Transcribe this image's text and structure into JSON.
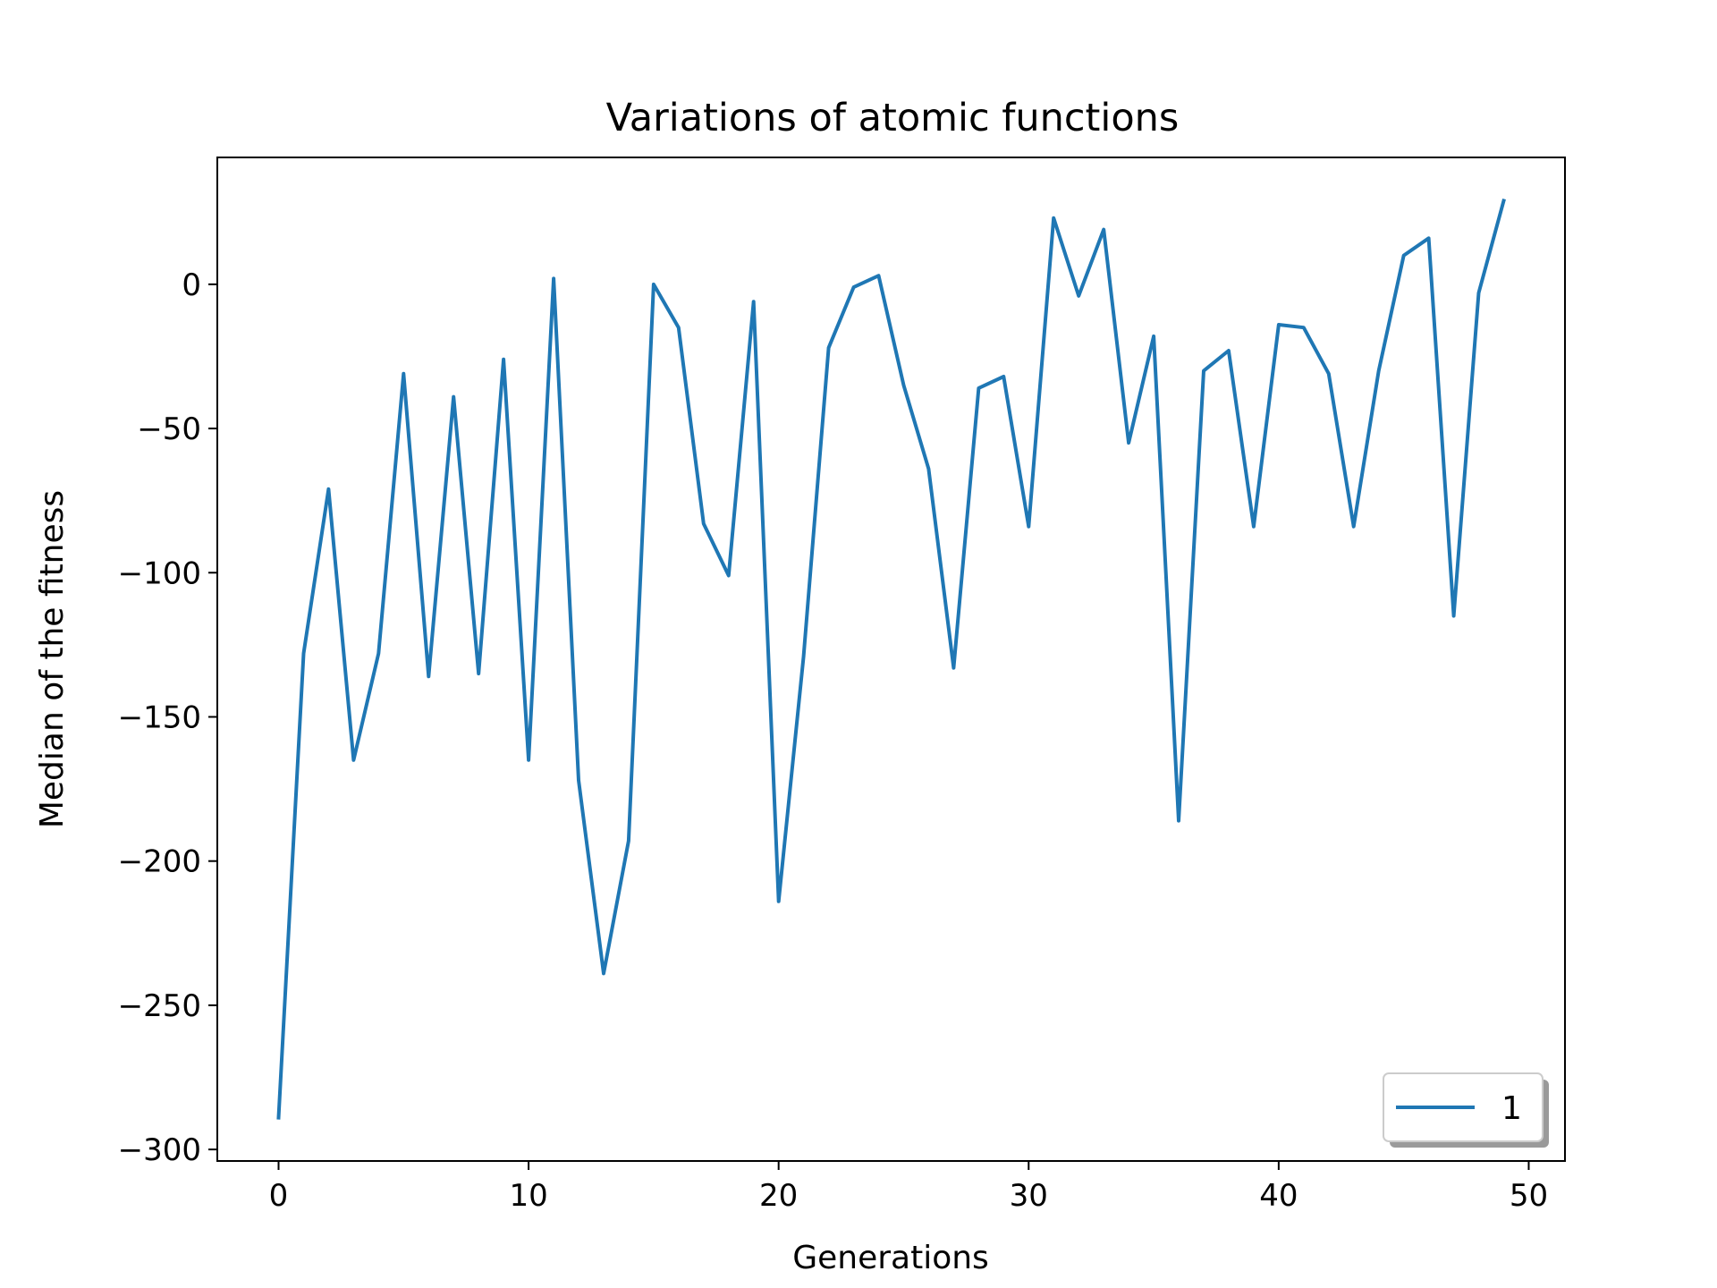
{
  "chart_data": {
    "type": "line",
    "title": "Variations of atomic functions",
    "xlabel": "Generations",
    "ylabel": "Median of the fitness",
    "xlim": [
      -2.45,
      51.45
    ],
    "ylim": [
      -304,
      44
    ],
    "xticks": [
      0,
      10,
      20,
      30,
      40,
      50
    ],
    "xtick_labels": [
      "0",
      "10",
      "20",
      "30",
      "40",
      "50"
    ],
    "yticks": [
      -300,
      -250,
      -200,
      -150,
      -100,
      -50,
      0
    ],
    "ytick_labels": [
      "−300",
      "−250",
      "−200",
      "−150",
      "−100",
      "−50",
      "0"
    ],
    "grid": false,
    "legend_position": "lower-right",
    "series": [
      {
        "name": "1",
        "color": "#1f77b4",
        "x": [
          0,
          1,
          2,
          3,
          4,
          5,
          6,
          7,
          8,
          9,
          10,
          11,
          12,
          13,
          14,
          15,
          16,
          17,
          18,
          19,
          20,
          21,
          22,
          23,
          24,
          25,
          26,
          27,
          28,
          29,
          30,
          31,
          32,
          33,
          34,
          35,
          36,
          37,
          38,
          39,
          40,
          41,
          42,
          43,
          44,
          45,
          46,
          47,
          48,
          49
        ],
        "y": [
          -289,
          -128,
          -71,
          -165,
          -128,
          -31,
          -136,
          -39,
          -135,
          -26,
          -165,
          2,
          -172,
          -239,
          -193,
          0,
          -15,
          -83,
          -101,
          -6,
          -214,
          -129,
          -22,
          -1,
          3,
          -35,
          -64,
          -133,
          -36,
          -32,
          -84,
          23,
          -4,
          19,
          -55,
          -18,
          -186,
          -30,
          -23,
          -84,
          -14,
          -15,
          -31,
          -84,
          -30,
          10,
          16,
          -115,
          -3,
          29
        ]
      }
    ]
  }
}
